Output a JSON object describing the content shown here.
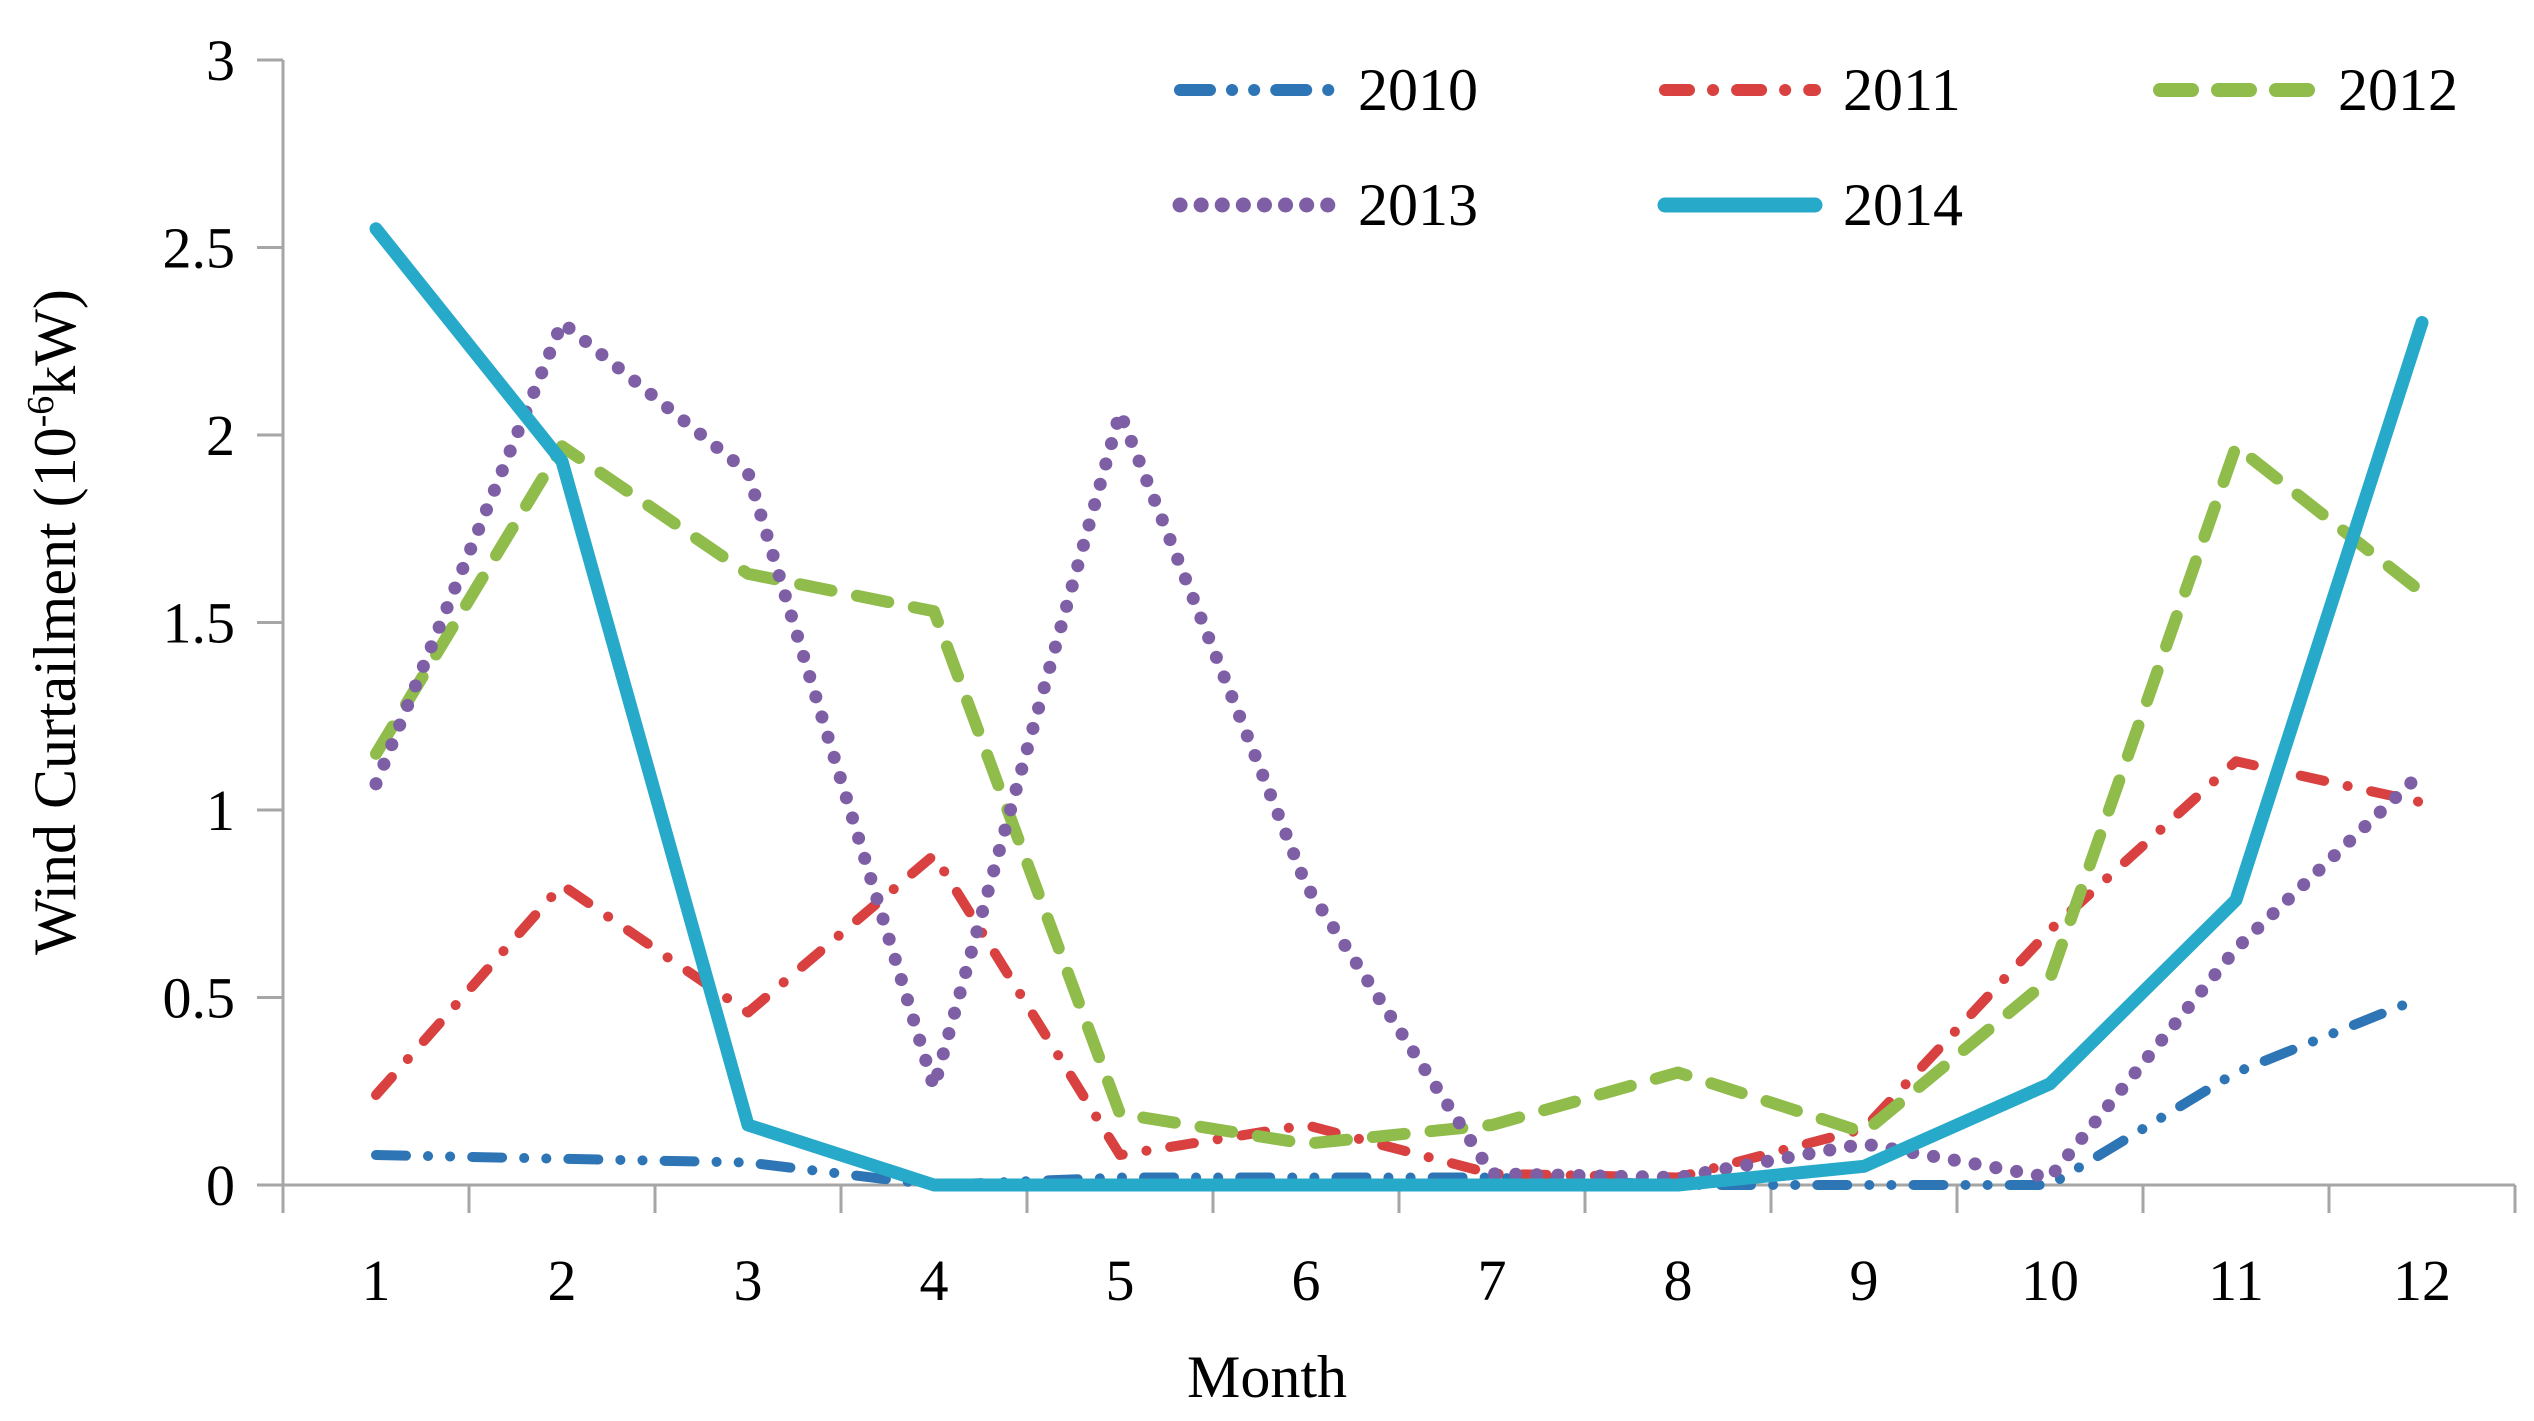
{
  "chart_data": {
    "type": "line",
    "title": "",
    "xlabel": "Month",
    "ylabel": {
      "prefix": "Wind Curtailment (10",
      "sup": "-6",
      "suffix": "kW)"
    },
    "x_ticklabels": [
      "1",
      "2",
      "3",
      "4",
      "5",
      "6",
      "7",
      "8",
      "9",
      "10",
      "11",
      "12"
    ],
    "y_ticks": [
      0,
      0.5,
      1,
      1.5,
      2,
      2.5,
      3
    ],
    "y_ticklabels": [
      "0",
      "0.5",
      "1",
      "1.5",
      "2",
      "2.5",
      "3"
    ],
    "ylim": [
      0,
      3
    ],
    "grid": false,
    "legend_position": "top-right",
    "legend_rows": [
      [
        "2010",
        "2011",
        "2012"
      ],
      [
        "2013",
        "2014"
      ]
    ],
    "axis_color": "#a6a6a6",
    "text_color": "#000000",
    "background_color": "#ffffff",
    "series": [
      {
        "name": "2010",
        "color": "#2e75b6",
        "style": "dash-dot-dot",
        "values": [
          0.08,
          0.07,
          0.06,
          0.0,
          0.02,
          0.02,
          0.02,
          0.0,
          0.0,
          0.0,
          0.3,
          0.5
        ]
      },
      {
        "name": "2011",
        "color": "#d94141",
        "style": "dash-dot",
        "values": [
          0.24,
          0.8,
          0.46,
          0.88,
          0.08,
          0.16,
          0.03,
          0.02,
          0.15,
          0.68,
          1.13,
          1.02
        ]
      },
      {
        "name": "2012",
        "color": "#8fbc4a",
        "style": "dashed",
        "values": [
          1.15,
          1.97,
          1.63,
          1.53,
          0.19,
          0.11,
          0.16,
          0.3,
          0.14,
          0.55,
          1.97,
          1.58
        ]
      },
      {
        "name": "2013",
        "color": "#7e5fa6",
        "style": "dotted",
        "values": [
          1.07,
          2.3,
          1.9,
          0.26,
          2.06,
          0.8,
          0.03,
          0.02,
          0.11,
          0.02,
          0.63,
          1.1
        ]
      },
      {
        "name": "2014",
        "color": "#27a9c9",
        "style": "solid",
        "values": [
          2.55,
          1.93,
          0.16,
          0.0,
          0.0,
          0.0,
          0.0,
          0.0,
          0.05,
          0.27,
          0.76,
          2.3
        ]
      }
    ]
  }
}
